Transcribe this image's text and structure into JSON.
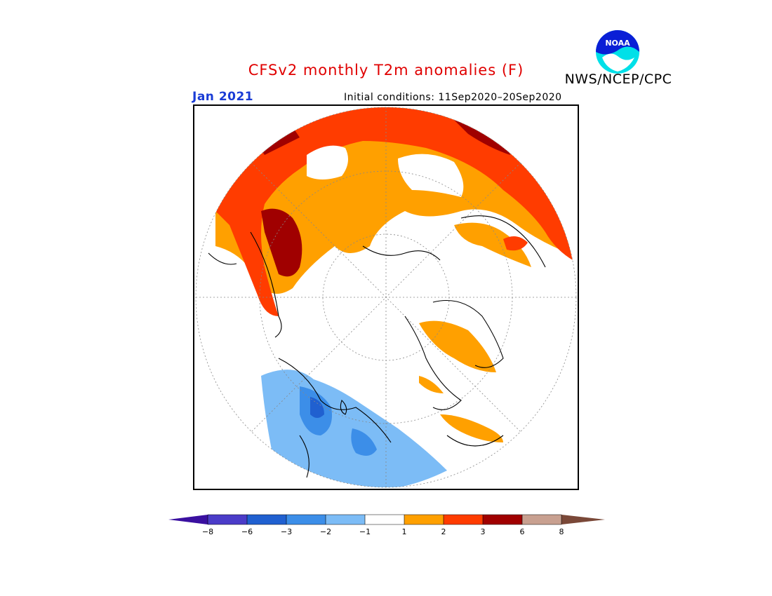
{
  "header": {
    "title": "CFSv2 monthly T2m anomalies (F)",
    "agency": "NWS/NCEP/CPC",
    "logo_text": "NOAA",
    "month": "Jan 2021",
    "initial_conditions": "Initial conditions: 11Sep2020–20Sep2020"
  },
  "legend": {
    "tick_labels": [
      "−8",
      "−6",
      "−3",
      "−2",
      "−1",
      "1",
      "2",
      "3",
      "6",
      "8"
    ],
    "colors": [
      "#3a10a0",
      "#4b3cc8",
      "#2060d0",
      "#3c8ee8",
      "#7cbcf6",
      "#ffffff",
      "#ffa000",
      "#ff3c00",
      "#a00000",
      "#c8a090",
      "#7a4838"
    ]
  },
  "colors": {
    "title": "#e00000",
    "month": "#1a3cd6",
    "orange": "#ffa000",
    "red_orange": "#ff3c00",
    "dark_red": "#a00000",
    "tan": "#c8a090",
    "light_blue": "#7cbcf6",
    "mid_blue": "#3c8ee8",
    "blue": "#2060d0"
  }
}
